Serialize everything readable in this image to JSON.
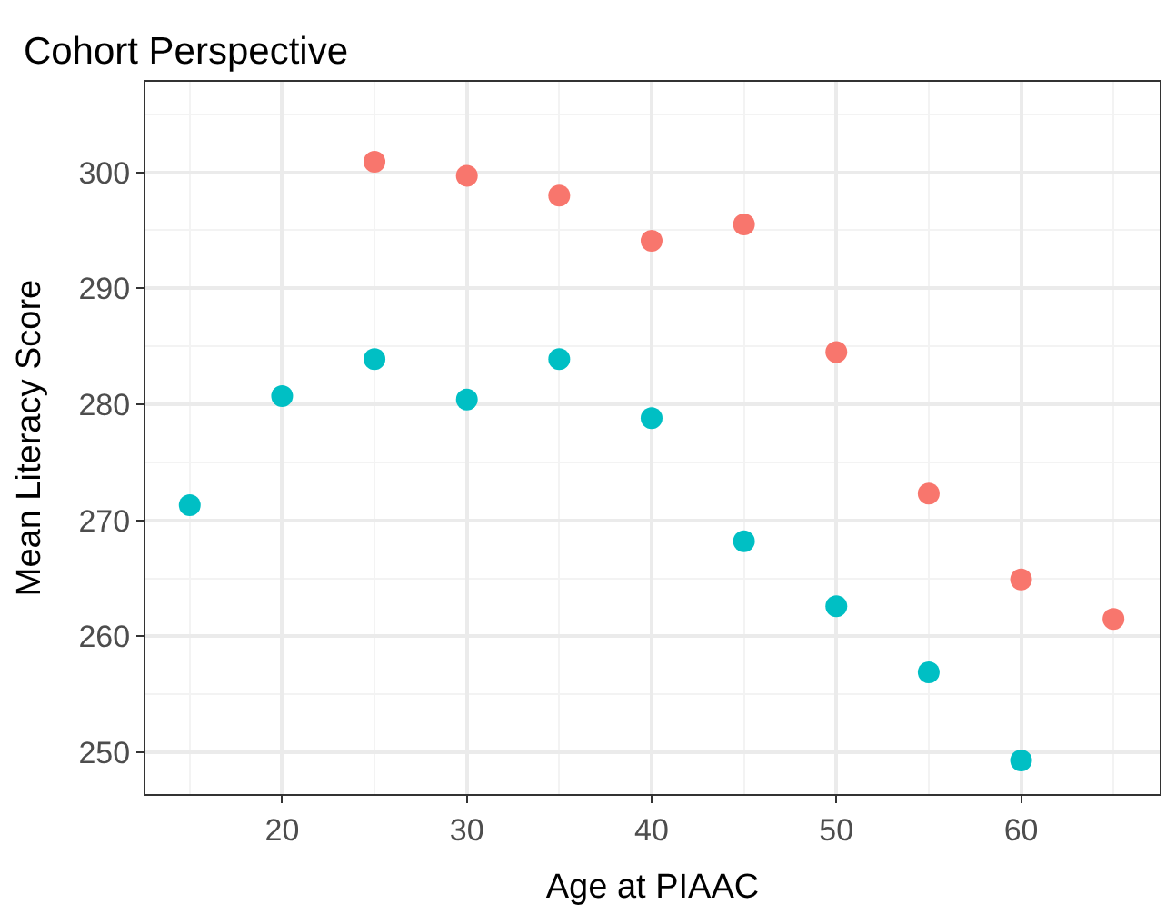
{
  "chart_data": {
    "type": "scatter",
    "title": "Cohort Perspective",
    "xlabel": "Age at PIAAC",
    "ylabel": "Mean Literacy Score",
    "xlim": [
      12.6,
      67.5
    ],
    "xticks": [
      20,
      30,
      40,
      50,
      60
    ],
    "ylim": [
      246.4,
      307.8
    ],
    "yticks": [
      250,
      260,
      270,
      280,
      290,
      300
    ],
    "grid": true,
    "marker": "circle",
    "series": [
      {
        "color": "#f8766d",
        "x": [
          25,
          30,
          35,
          40,
          45,
          50,
          55,
          60,
          65
        ],
        "values": [
          300.9,
          299.7,
          298.0,
          294.1,
          295.5,
          284.5,
          272.3,
          264.9,
          261.5
        ]
      },
      {
        "color": "#00bfc4",
        "x": [
          15,
          20,
          25,
          30,
          35,
          40,
          45,
          50,
          55,
          60
        ],
        "values": [
          271.3,
          280.7,
          283.9,
          280.4,
          283.9,
          278.8,
          268.2,
          262.6,
          256.9,
          249.3
        ]
      }
    ]
  }
}
